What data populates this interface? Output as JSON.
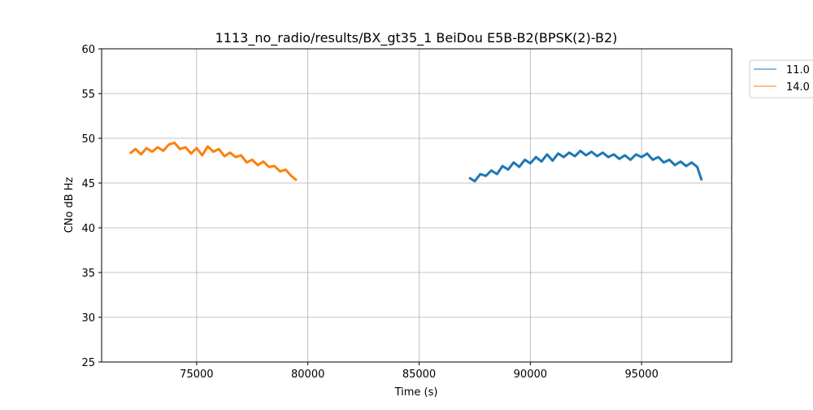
{
  "chart_data": {
    "type": "line",
    "title": "1113_no_radio/results/BX_gt35_1 BeiDou E5B-B2(BPSK(2)-B2)",
    "xlabel": "Time (s)",
    "ylabel": "CNo dB Hz",
    "xlim": [
      70730,
      99050
    ],
    "ylim": [
      25,
      60
    ],
    "xticks": [
      75000,
      80000,
      85000,
      90000,
      95000
    ],
    "yticks": [
      25,
      30,
      35,
      40,
      45,
      50,
      55,
      60
    ],
    "grid": true,
    "legend_placement": "outside-top-right",
    "series": [
      {
        "name": "11.0",
        "color": "#1f77b4",
        "x": [
          87250,
          87500,
          87750,
          88000,
          88250,
          88500,
          88750,
          89000,
          89250,
          89500,
          89750,
          90000,
          90250,
          90500,
          90750,
          91000,
          91250,
          91500,
          91750,
          92000,
          92250,
          92500,
          92750,
          93000,
          93250,
          93500,
          93750,
          94000,
          94250,
          94500,
          94750,
          95000,
          95250,
          95500,
          95750,
          96000,
          96250,
          96500,
          96750,
          97000,
          97250,
          97500,
          97700
        ],
        "y": [
          45.6,
          45.2,
          46.0,
          45.8,
          46.4,
          46.0,
          46.9,
          46.5,
          47.3,
          46.8,
          47.6,
          47.2,
          47.9,
          47.4,
          48.2,
          47.5,
          48.3,
          47.9,
          48.4,
          48.0,
          48.6,
          48.1,
          48.5,
          48.0,
          48.4,
          47.9,
          48.2,
          47.7,
          48.1,
          47.6,
          48.2,
          47.9,
          48.3,
          47.6,
          47.9,
          47.3,
          47.6,
          47.0,
          47.4,
          46.9,
          47.3,
          46.8,
          45.3
        ]
      },
      {
        "name": "14.0",
        "color": "#ff7f0e",
        "x": [
          72000,
          72250,
          72500,
          72750,
          73000,
          73250,
          73500,
          73750,
          74000,
          74250,
          74500,
          74750,
          75000,
          75250,
          75500,
          75750,
          76000,
          76250,
          76500,
          76750,
          77000,
          77250,
          77500,
          77750,
          78000,
          78250,
          78500,
          78750,
          79000,
          79250,
          79500
        ],
        "y": [
          48.3,
          48.8,
          48.2,
          48.9,
          48.5,
          49.0,
          48.6,
          49.3,
          49.5,
          48.8,
          49.0,
          48.3,
          48.9,
          48.1,
          49.1,
          48.5,
          48.8,
          48.0,
          48.4,
          47.9,
          48.1,
          47.3,
          47.6,
          47.0,
          47.4,
          46.8,
          46.9,
          46.3,
          46.5,
          45.8,
          45.3
        ]
      }
    ]
  }
}
